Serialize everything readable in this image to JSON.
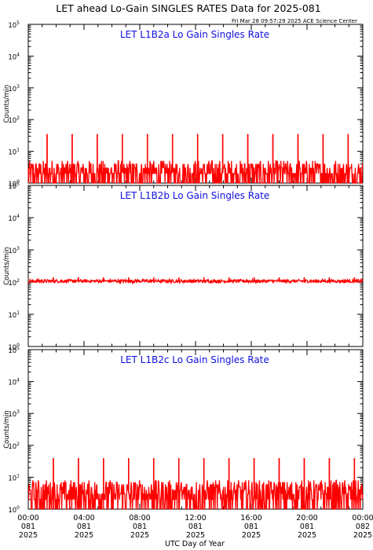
{
  "header": {
    "title": "LET ahead Lo-Gain SINGLES RATES Data for 2025-081",
    "timestamp": "Fri Mar 28 09:57:29 2025 ACE Science Center"
  },
  "chart_data": [
    {
      "type": "line",
      "title": "LET L1B2a Lo Gain Singles Rate",
      "ylabel": "Counts/min",
      "yscale": "log",
      "ylim": [
        1,
        100000
      ],
      "xlim": [
        0,
        24
      ],
      "x_unit": "hours UTC, day 081 2025",
      "color": "#ff0000",
      "series": [
        {
          "baseline": [
            1,
            5
          ],
          "spikes_x": [
            1.35,
            3.15,
            4.95,
            6.75,
            8.55,
            10.35,
            12.15,
            13.95,
            15.75,
            17.55,
            19.35,
            21.15,
            22.95
          ],
          "spikes_y": [
            35,
            35,
            35,
            35,
            35,
            35,
            35,
            35,
            35,
            35,
            35,
            35,
            35
          ]
        }
      ]
    },
    {
      "type": "line",
      "title": "LET L1B2b Lo Gain Singles Rate",
      "ylabel": "Counts/min",
      "yscale": "log",
      "ylim": [
        1,
        100000
      ],
      "xlim": [
        0,
        24
      ],
      "color": "#ff0000",
      "series": [
        {
          "baseline": [
            95,
            120
          ],
          "spikes_x": [
            1.8,
            3.6,
            5.4,
            7.2,
            9.0,
            10.8,
            12.6,
            14.4,
            16.2,
            18.0,
            19.8,
            21.6,
            23.4
          ],
          "spikes_y": [
            140,
            140,
            140,
            140,
            140,
            140,
            140,
            140,
            140,
            140,
            140,
            140,
            140
          ]
        }
      ]
    },
    {
      "type": "line",
      "title": "LET L1B2c Lo Gain Singles Rate",
      "ylabel": "Counts/min",
      "yscale": "log",
      "ylim": [
        1,
        100000
      ],
      "xlim": [
        0,
        24
      ],
      "color": "#ff0000",
      "series": [
        {
          "baseline": [
            1,
            8
          ],
          "spikes_x": [
            1.8,
            3.6,
            5.4,
            7.2,
            9.0,
            10.8,
            12.6,
            14.4,
            16.2,
            18.0,
            19.8,
            21.6,
            23.4
          ],
          "spikes_y": [
            40,
            40,
            40,
            40,
            40,
            40,
            40,
            40,
            40,
            40,
            40,
            40,
            40
          ]
        }
      ]
    }
  ],
  "y_ticks": {
    "base": "10",
    "exponents": [
      "0",
      "1",
      "2",
      "3",
      "4",
      "5"
    ]
  },
  "x_ticks": [
    {
      "time": "00:00",
      "day": "081",
      "year": "2025"
    },
    {
      "time": "04:00",
      "day": "081",
      "year": "2025"
    },
    {
      "time": "08:00",
      "day": "081",
      "year": "2025"
    },
    {
      "time": "12:00",
      "day": "081",
      "year": "2025"
    },
    {
      "time": "16:00",
      "day": "081",
      "year": "2025"
    },
    {
      "time": "20:00",
      "day": "081",
      "year": "2025"
    },
    {
      "time": "00:00",
      "day": "082",
      "year": "2025"
    }
  ],
  "xlabel": "UTC Day of Year"
}
